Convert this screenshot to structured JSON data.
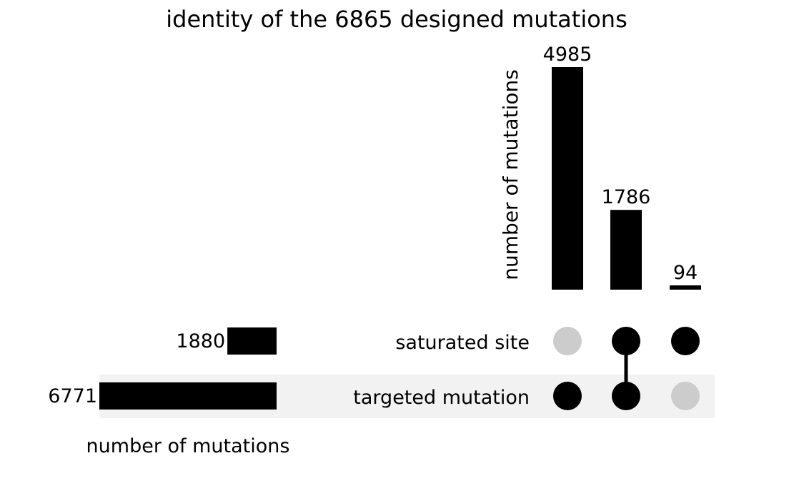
{
  "chart_data": {
    "type": "upset",
    "title": "identity of the 6865 designed mutations",
    "sets": [
      {
        "name": "saturated site",
        "size": 1880
      },
      {
        "name": "targeted mutation",
        "size": 6771
      }
    ],
    "intersections": [
      {
        "members": [
          "targeted mutation"
        ],
        "size": 4985
      },
      {
        "members": [
          "saturated site",
          "targeted mutation"
        ],
        "size": 1786
      },
      {
        "members": [
          "saturated site"
        ],
        "size": 94
      }
    ],
    "intersection_ylabel": "number of mutations",
    "set_size_xlabel": "number of mutations",
    "intersection_ylim": [
      0,
      4985
    ],
    "set_size_xlim": [
      0,
      6771
    ],
    "grid": false,
    "colors": {
      "bar": "#000000",
      "dot_active": "#000000",
      "dot_inactive": "#cccccc",
      "row_shade": "#f2f2f2"
    }
  }
}
